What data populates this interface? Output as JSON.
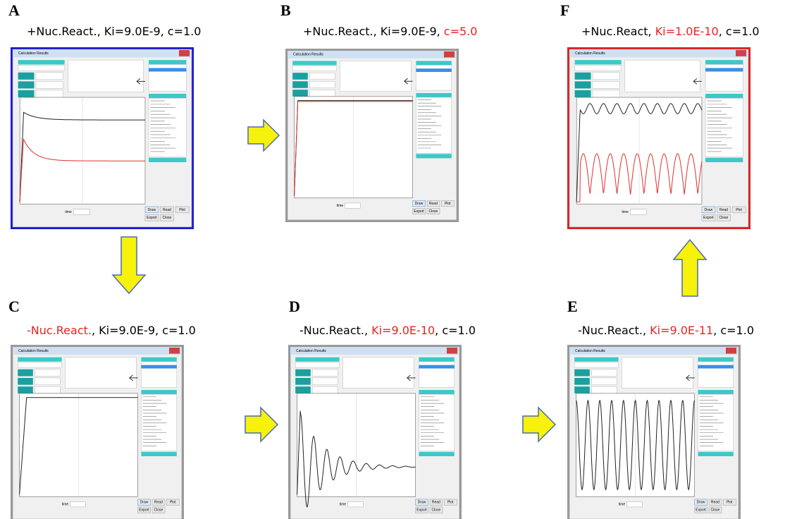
{
  "window": {
    "title": "Calculation Results",
    "buttons": [
      "Draw",
      "Read",
      "Plot",
      "Export",
      "Close"
    ],
    "time_label": "time"
  },
  "panels": [
    {
      "letter": "A",
      "frame": "#1a1ad6",
      "caption": [
        {
          "text": "+Nuc.React., Ki=9.0E-9, c=1.0",
          "color": "#000000"
        }
      ]
    },
    {
      "letter": "B",
      "frame": "#9a9a9a",
      "caption": [
        {
          "text": "+Nuc.React., Ki=9.0E-9, ",
          "color": "#000000"
        },
        {
          "text": "c=5.0",
          "color": "#e8231f"
        }
      ]
    },
    {
      "letter": "F",
      "frame": "#e02020",
      "caption": [
        {
          "text": "+Nuc.React, ",
          "color": "#000000"
        },
        {
          "text": "Ki=1.0E-10",
          "color": "#e8231f"
        },
        {
          "text": ", c=1.0",
          "color": "#000000"
        }
      ]
    },
    {
      "letter": "C",
      "frame": "#9a9a9a",
      "caption": [
        {
          "text": "-Nuc.React.",
          "color": "#e8231f"
        },
        {
          "text": ", Ki=9.0E-9, c=1.0",
          "color": "#000000"
        }
      ]
    },
    {
      "letter": "D",
      "frame": "#9a9a9a",
      "caption": [
        {
          "text": "-Nuc.React., ",
          "color": "#000000"
        },
        {
          "text": "Ki=9.0E-10",
          "color": "#e8231f"
        },
        {
          "text": ", c=1.0",
          "color": "#000000"
        }
      ]
    },
    {
      "letter": "E",
      "frame": "#9a9a9a",
      "caption": [
        {
          "text": "-Nuc.React., ",
          "color": "#000000"
        },
        {
          "text": "Ki=9.0E-11",
          "color": "#e8231f"
        },
        {
          "text": ", c=1.0",
          "color": "#000000"
        }
      ]
    }
  ]
}
